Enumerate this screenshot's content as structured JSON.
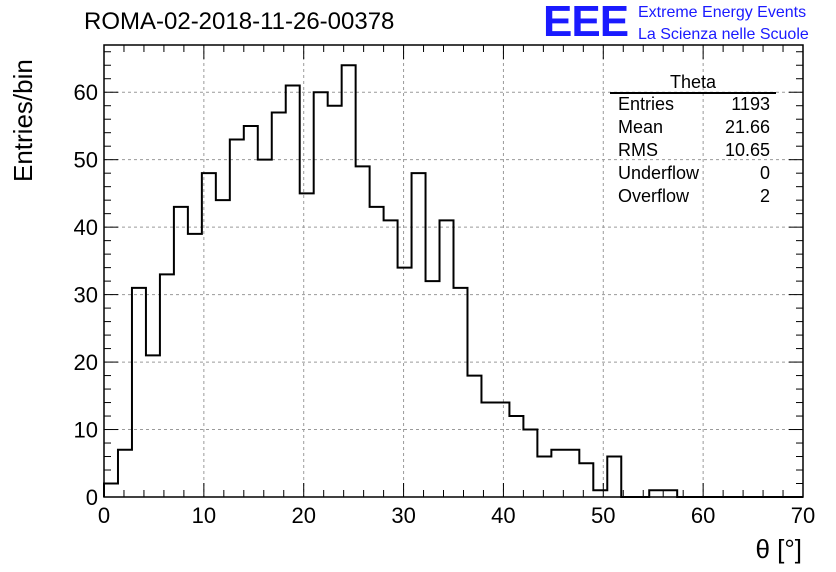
{
  "chart_data": {
    "type": "bar",
    "title": "ROMA-02-2018-11-26-00378",
    "xlabel": "θ [°]",
    "ylabel": "Entries/bin",
    "xlim": [
      0,
      70
    ],
    "ylim": [
      0,
      67
    ],
    "bin_width": 1.4,
    "x_ticks": [
      0,
      10,
      20,
      30,
      40,
      50,
      60,
      70
    ],
    "y_ticks": [
      0,
      10,
      20,
      30,
      40,
      50,
      60
    ],
    "grid": true,
    "values": [
      2,
      7,
      31,
      21,
      33,
      43,
      39,
      48,
      44,
      53,
      55,
      50,
      57,
      61,
      45,
      60,
      58,
      64,
      49,
      43,
      41,
      34,
      48,
      32,
      41,
      31,
      18,
      14,
      14,
      12,
      10,
      6,
      7,
      7,
      5,
      1,
      6,
      0,
      0,
      1,
      1,
      0,
      0,
      0,
      0,
      0,
      0,
      0,
      0,
      0
    ],
    "stats": {
      "title": "Theta",
      "rows": [
        {
          "label": "Entries",
          "value": "1193"
        },
        {
          "label": "Mean",
          "value": "21.66"
        },
        {
          "label": "RMS",
          "value": "10.65"
        },
        {
          "label": "Underflow",
          "value": "0"
        },
        {
          "label": "Overflow",
          "value": "2"
        }
      ]
    }
  },
  "logo": {
    "mark": "EEE",
    "line1": "Extreme Energy Events",
    "line2": "La Scienza nelle Scuole",
    "color": "#1a1aff"
  }
}
